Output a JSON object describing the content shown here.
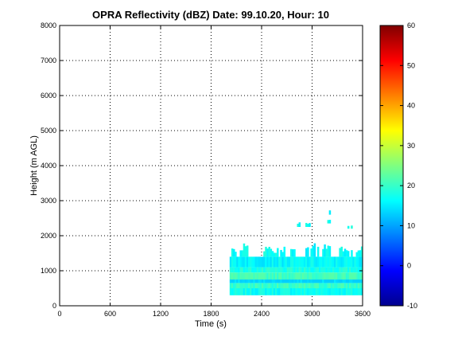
{
  "chart_data": {
    "type": "heatmap",
    "title": "OPRA Reflectivity (dBZ)  Date: 99.10.20, Hour: 10",
    "xlabel": "Time (s)",
    "ylabel": "Height (m AGL)",
    "xlim": [
      0,
      3600
    ],
    "ylim": [
      0,
      8000
    ],
    "x_ticks": [
      "0",
      "600",
      "1200",
      "1800",
      "2400",
      "3000",
      "3600"
    ],
    "y_ticks": [
      "0",
      "1000",
      "2000",
      "3000",
      "4000",
      "5000",
      "6000",
      "7000",
      "8000"
    ],
    "grid": true,
    "colormap": "jet",
    "colorbar": {
      "range": [
        -10,
        60
      ],
      "ticks": [
        "-10",
        "0",
        "10",
        "20",
        "30",
        "40",
        "50",
        "60"
      ]
    },
    "echo_region": {
      "time_start": 2020,
      "time_end": 3600,
      "main_base": 300,
      "main_top": 1400,
      "dbz_range": [
        13,
        22
      ]
    },
    "layers": [
      {
        "height_bottom": 300,
        "height_top": 500,
        "dbz": 17
      },
      {
        "height_bottom": 500,
        "height_top": 650,
        "dbz": 20
      },
      {
        "height_bottom": 650,
        "height_top": 750,
        "dbz": 13
      },
      {
        "height_bottom": 750,
        "height_top": 950,
        "dbz": 21
      },
      {
        "height_bottom": 950,
        "height_top": 1100,
        "dbz": 18
      },
      {
        "height_bottom": 1100,
        "height_top": 1400,
        "dbz": 16
      }
    ],
    "upper_fragments": [
      {
        "time_start": 2040,
        "time_end": 2280,
        "height_bottom": 1400,
        "height_top": 1800,
        "dbz": 17
      },
      {
        "time_start": 2400,
        "time_end": 2800,
        "height_bottom": 1400,
        "height_top": 1700,
        "dbz": 17
      },
      {
        "time_start": 2900,
        "time_end": 3250,
        "height_bottom": 1400,
        "height_top": 1800,
        "dbz": 16
      },
      {
        "time_start": 3300,
        "time_end": 3600,
        "height_bottom": 1400,
        "height_top": 1700,
        "dbz": 17
      },
      {
        "time_start": 2800,
        "time_end": 2980,
        "height_bottom": 2250,
        "height_top": 2400,
        "dbz": 17
      },
      {
        "time_start": 3120,
        "time_end": 3220,
        "height_bottom": 2350,
        "height_top": 2500,
        "dbz": 17
      },
      {
        "time_start": 3400,
        "time_end": 3480,
        "height_bottom": 2200,
        "height_top": 2350,
        "dbz": 18
      },
      {
        "time_start": 3200,
        "time_end": 3220,
        "height_bottom": 2600,
        "height_top": 2800,
        "dbz": 17
      }
    ]
  }
}
